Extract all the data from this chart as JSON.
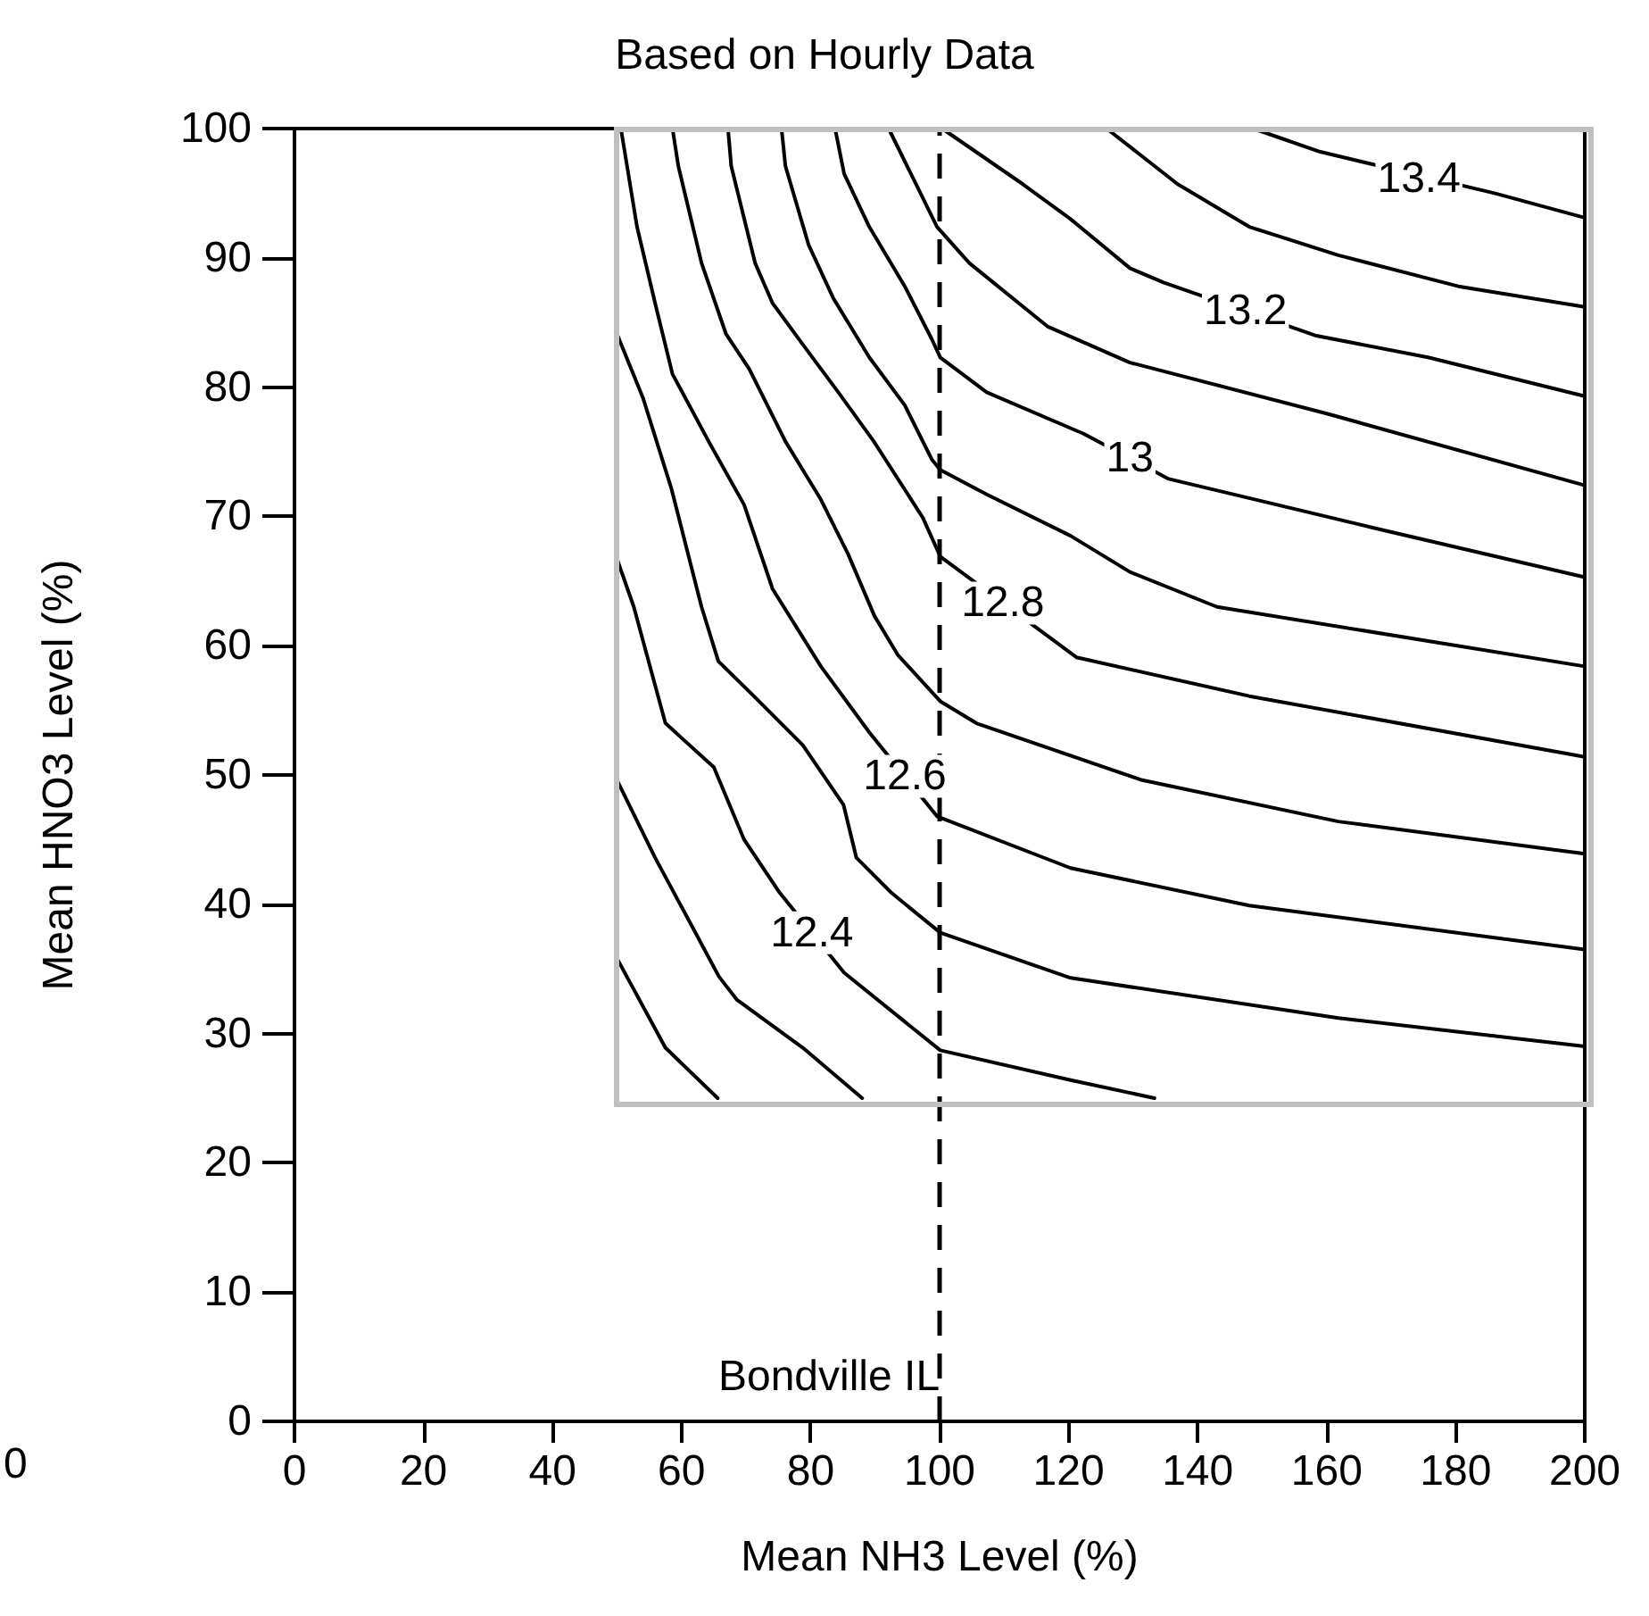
{
  "chart_data": {
    "type": "line",
    "title": "Based on Hourly Data",
    "xlabel": "Mean NH3 Level (%)",
    "ylabel": "Mean HNO3 Level (%)",
    "xlim": [
      0,
      200
    ],
    "ylim": [
      0,
      100
    ],
    "xticks": [
      0,
      20,
      40,
      60,
      80,
      100,
      120,
      140,
      160,
      180,
      200
    ],
    "yticks": [
      0,
      10,
      20,
      30,
      40,
      50,
      60,
      70,
      80,
      90,
      100
    ],
    "marker": "none",
    "line_style": "solid",
    "series": [
      {
        "color": "#000000",
        "x": [
          50,
          57.5,
          65.6
        ],
        "values": [
          35.8,
          28.9,
          25
        ]
      },
      {
        "color": "#000000",
        "x": [
          50,
          55.9,
          61.4,
          65.8,
          68.6,
          78.8,
          88
        ],
        "values": [
          49.6,
          43.6,
          38.5,
          34.4,
          32.6,
          28.9,
          25
        ]
      },
      {
        "color": "#000000",
        "x": [
          50,
          52.6,
          57.5,
          65,
          69.7,
          75.2,
          85.2,
          100.1,
          120.3,
          133.3
        ],
        "values": [
          66.7,
          63,
          54,
          50.6,
          45,
          40.9,
          34.7,
          28.7,
          26.4,
          25
        ]
      },
      {
        "color": "#000000",
        "x": [
          50,
          54,
          58.4,
          63.1,
          65.7,
          71.2,
          78.8,
          85.1,
          87.1,
          92.5,
          100.1,
          120.3,
          161.8,
          200
        ],
        "values": [
          84.1,
          79.2,
          72.2,
          63,
          58.8,
          56.1,
          52.3,
          47.7,
          43.6,
          40.9,
          37.8,
          34.3,
          31.2,
          29
        ]
      },
      {
        "color": "#000000",
        "x": [
          50.6,
          53.1,
          55.9,
          58.6,
          64.2,
          69.7,
          74.1,
          81.6,
          89.1,
          99.6,
          120.3,
          148,
          200
        ],
        "values": [
          100,
          92.4,
          86.5,
          81,
          75.8,
          70.9,
          64.4,
          58.4,
          53.3,
          46.8,
          42.8,
          39.9,
          36.5
        ]
      },
      {
        "color": "#000000",
        "x": [
          58.6,
          59.5,
          63.1,
          66.9,
          70.5,
          76.1,
          81.6,
          85.8,
          89.9,
          93.5,
          100.1,
          105.7,
          131.4,
          161.8,
          200
        ],
        "values": [
          100,
          97.1,
          89.6,
          84.1,
          81.4,
          75.8,
          71.3,
          67.1,
          62.3,
          59.3,
          55.7,
          54,
          49.6,
          46.4,
          43.9
        ]
      },
      {
        "color": "#000000",
        "x": [
          67.2,
          67.7,
          71.4,
          74.1,
          78.8,
          84.3,
          89.8,
          97.4,
          100.1,
          121.2,
          148,
          200
        ],
        "values": [
          100,
          97.1,
          89.6,
          86.5,
          83.3,
          79.6,
          75.8,
          69.9,
          66.9,
          59.1,
          56.1,
          51.4
        ]
      },
      {
        "color": "#000000",
        "x": [
          75.5,
          76.1,
          79.7,
          83.5,
          89.1,
          94.6,
          98.8,
          100.1,
          107.3,
          120.3,
          129.5,
          143,
          200
        ],
        "values": [
          100,
          97.1,
          91,
          86.9,
          82.3,
          78.6,
          74.4,
          73.6,
          71.7,
          68.5,
          65.7,
          63,
          58.4
        ]
      },
      {
        "color": "#000000",
        "x": [
          83.8,
          85.2,
          89.1,
          94.6,
          98.8,
          100.1,
          107.3,
          122.3,
          135.5,
          167.4,
          200
        ],
        "values": [
          100,
          96.5,
          92.4,
          87.8,
          83.7,
          82.3,
          79.6,
          76.4,
          72.9,
          69.1,
          65.3
        ]
      },
      {
        "color": "#000000",
        "x": [
          92.1,
          99.6,
          104.6,
          116.7,
          129.5,
          160.4,
          200
        ],
        "values": [
          100,
          92.4,
          89.6,
          84.7,
          81.9,
          77.9,
          72.4
        ]
      },
      {
        "color": "#000000",
        "x": [
          100.4,
          112.9,
          120.3,
          129.5,
          134.7,
          158.2,
          175.7,
          200
        ],
        "values": [
          100,
          95.7,
          93,
          89.2,
          88.1,
          84,
          82.3,
          79.3
        ]
      },
      {
        "color": "#000000",
        "x": [
          125.9,
          136.9,
          148,
          161.8,
          180.4,
          200
        ],
        "values": [
          100,
          95.7,
          92.4,
          90.2,
          87.8,
          86.2
        ]
      },
      {
        "color": "#000000",
        "x": [
          148.6,
          159,
          186,
          200
        ],
        "values": [
          100,
          98.2,
          95,
          93.1
        ]
      }
    ],
    "ref_lines": [
      {
        "axis": "x",
        "value": 100,
        "color": "#000000",
        "line_style": "dashed",
        "label": "Bondville IL"
      }
    ],
    "annotations": [
      {
        "text": "13.4",
        "x": 174.3,
        "y": 96.1
      },
      {
        "text": "13.2",
        "x": 147.4,
        "y": 85.9
      },
      {
        "text": "13",
        "x": 129.5,
        "y": 74.5
      },
      {
        "text": "12.8",
        "x": 109.8,
        "y": 63.3
      },
      {
        "text": "12.6",
        "x": 94.6,
        "y": 49.9
      },
      {
        "text": "12.4",
        "x": 80.2,
        "y": 37.8
      },
      "0"
    ]
  }
}
